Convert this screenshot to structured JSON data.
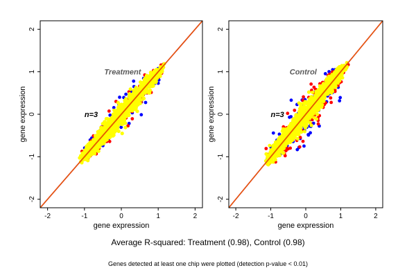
{
  "colors": {
    "background": "#ffffff",
    "panel_bg": "#ffffff",
    "yellow": "#ffff00",
    "red": "#ff0000",
    "blue": "#0000ff",
    "diagonal_outer": "#cc0000",
    "diagonal_inner": "#ffa500",
    "frame": "#000000"
  },
  "caption": {
    "main": "Average R-squared: Treatment (0.98), Control (0.98)",
    "sub": "Genes detected at least one chip were plotted (detection p-value < 0.01)"
  },
  "chart_data": [
    {
      "type": "scatter",
      "title": "Treatment",
      "n_label": "n=3",
      "xlabel": "gene expression",
      "ylabel": "gene expression",
      "xlim": [
        -2.2,
        2.2
      ],
      "ylim": [
        -2.2,
        2.2
      ],
      "xticks": [
        -2,
        -1,
        0,
        1,
        2
      ],
      "yticks": [
        -2,
        -1,
        0,
        1,
        2
      ],
      "grid": false,
      "reference_line": "y = x",
      "cloud": {
        "x_range": [
          -1.15,
          1.2
        ],
        "yellow_spread": 0.13,
        "red_spread": 0.2,
        "blue_spread": 0.24,
        "points_yellow": 1400,
        "points_red": 160,
        "points_blue": 90
      }
    },
    {
      "type": "scatter",
      "title": "Control",
      "n_label": "n=3",
      "xlabel": "gene expression",
      "ylabel": "gene expression",
      "xlim": [
        -2.2,
        2.2
      ],
      "ylim": [
        -2.2,
        2.2
      ],
      "xticks": [
        -2,
        -1,
        0,
        1,
        2
      ],
      "yticks": [
        -2,
        -1,
        0,
        1,
        2
      ],
      "grid": false,
      "reference_line": "y = x",
      "cloud": {
        "x_range": [
          -1.15,
          1.2
        ],
        "yellow_spread": 0.14,
        "red_spread": 0.28,
        "blue_spread": 0.36,
        "points_yellow": 1400,
        "points_red": 190,
        "points_blue": 130
      }
    }
  ]
}
